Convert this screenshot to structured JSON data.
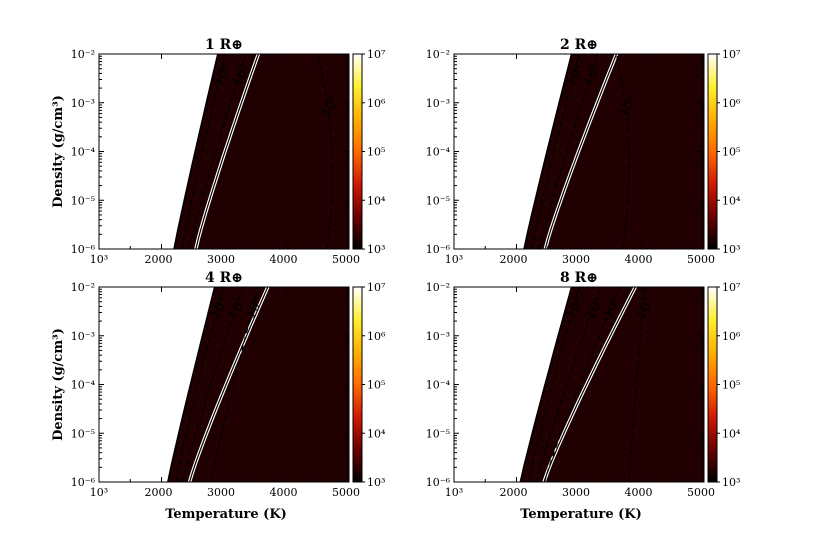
{
  "figure": {
    "xlabel": "Temperature (K)",
    "ylabel": "Density (g/cm³)"
  },
  "colorbar": {
    "ticks": [
      "10⁷",
      "10⁶",
      "10⁵",
      "10⁴",
      "10³"
    ],
    "range": [
      1000,
      10000000
    ],
    "colormap": [
      "#000000",
      "#6a0000",
      "#d01a00",
      "#ff6a00",
      "#ffb000",
      "#ffef30",
      "#ffffff"
    ]
  },
  "chart_data": [
    {
      "type": "heatmap",
      "title": "1 R⊕",
      "xlabel": "",
      "ylabel": "Density (g/cm³)",
      "xlim": [
        1000,
        5000
      ],
      "ylim": [
        1e-06,
        0.01
      ],
      "x_ticks": [
        "10³",
        "2000",
        "3000",
        "4000",
        "5000"
      ],
      "y_ticks": [
        "10⁻²",
        "10⁻³",
        "10⁻⁴",
        "10⁻⁵",
        "10⁻⁶"
      ],
      "boundary_T": [
        2200,
        2900
      ],
      "solid_contour_T": [
        2550,
        3550
      ],
      "dashed_contours": [
        {
          "label": "10⁴",
          "T": [
            2330,
            3020
          ]
        },
        {
          "label": "10⁵",
          "T": [
            2450,
            3350
          ]
        },
        {
          "label": "10⁶",
          "T": [
            4650,
            4500
          ]
        }
      ],
      "contour_labels": [
        "10⁴",
        "10⁵",
        "10⁶"
      ]
    },
    {
      "type": "heatmap",
      "title": "2 R⊕",
      "xlabel": "",
      "ylabel": "",
      "xlim": [
        1000,
        5000
      ],
      "ylim": [
        1e-06,
        0.01
      ],
      "x_ticks": [
        "10³",
        "2000",
        "3000",
        "4000",
        "5000"
      ],
      "y_ticks": [
        "10⁻²",
        "10⁻³",
        "10⁻⁴",
        "10⁻⁵",
        "10⁻⁶"
      ],
      "boundary_T": [
        2120,
        2880
      ],
      "solid_contour_T": [
        2460,
        3600
      ],
      "dashed_contours": [
        {
          "label": "10⁴",
          "T": [
            2250,
            3000
          ]
        },
        {
          "label": "10⁵",
          "T": [
            2370,
            3300
          ]
        },
        {
          "label": "10⁶",
          "T": [
            3700,
            3600
          ]
        }
      ],
      "contour_labels": [
        "10⁴",
        "10⁵",
        "10⁶"
      ]
    },
    {
      "type": "heatmap",
      "title": "4 R⊕",
      "xlabel": "Temperature (K)",
      "ylabel": "Density (g/cm³)",
      "xlim": [
        1000,
        5000
      ],
      "ylim": [
        1e-06,
        0.01
      ],
      "x_ticks": [
        "10³",
        "2000",
        "3000",
        "4000",
        "5000"
      ],
      "y_ticks": [
        "10⁻²",
        "10⁻³",
        "10⁻⁴",
        "10⁻⁵",
        "10⁻⁶"
      ],
      "boundary_T": [
        2100,
        2850
      ],
      "solid_contour_T": [
        2450,
        3700
      ],
      "dashed_contours": [
        {
          "label": "10⁴",
          "T": [
            2230,
            2980
          ]
        },
        {
          "label": "10⁵",
          "T": [
            2340,
            3300
          ]
        },
        {
          "label": "10⁶",
          "T": [
            2800,
            3550
          ]
        }
      ],
      "contour_labels": [
        "10⁴",
        "10⁵",
        "10⁶"
      ]
    },
    {
      "type": "heatmap",
      "title": "8 R⊕",
      "xlabel": "Temperature (K)",
      "ylabel": "",
      "xlim": [
        1000,
        5000
      ],
      "ylim": [
        1e-06,
        0.01
      ],
      "x_ticks": [
        "10³",
        "2000",
        "3000",
        "4000",
        "5000"
      ],
      "y_ticks": [
        "10⁻²",
        "10⁻³",
        "10⁻⁴",
        "10⁻⁵",
        "10⁻⁶"
      ],
      "boundary_T": [
        2060,
        2880
      ],
      "solid_contour_T": [
        2440,
        3900
      ],
      "dashed_contours": [
        {
          "label": "10⁴",
          "T": [
            2200,
            3000
          ]
        },
        {
          "label": "10⁵",
          "T": [
            2320,
            3350
          ]
        },
        {
          "label": "10⁶",
          "T": [
            2450,
            3650
          ]
        },
        {
          "label": "10⁷",
          "T": [
            3800,
            4050
          ]
        }
      ],
      "contour_labels": [
        "10⁴",
        "10⁵",
        "10⁶",
        "10⁷"
      ]
    }
  ]
}
